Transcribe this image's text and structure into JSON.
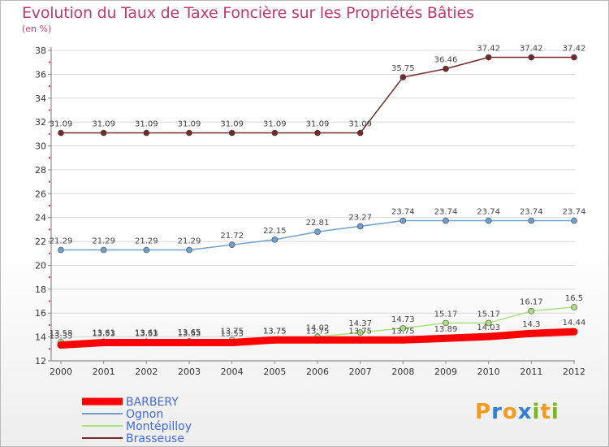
{
  "title": "Evolution du Taux de Taxe Foncière sur les Propriétés Bâties",
  "unit": "(en %)",
  "logo": {
    "letters": [
      "P",
      "r",
      "o",
      "x",
      "i",
      "t",
      "i"
    ],
    "colors": [
      "#f29b1d",
      "#2f7fd6",
      "#f29b1d",
      "#2f7fd6",
      "#7ab51d",
      "#f29b1d",
      "#7ab51d"
    ]
  },
  "chart_data": {
    "type": "line",
    "title": "Evolution du Taux de Taxe Foncière sur les Propriétés Bâties",
    "ylabel": "(en %)",
    "ylim": [
      12,
      38
    ],
    "yticks": [
      12,
      14,
      16,
      18,
      20,
      22,
      24,
      26,
      28,
      30,
      32,
      34,
      36,
      38
    ],
    "x": [
      "2000",
      "2001",
      "2002",
      "2003",
      "2004",
      "2005",
      "2006",
      "2007",
      "2008",
      "2009",
      "2010",
      "2011",
      "2012"
    ],
    "legend_position": "bottom-left",
    "series": [
      {
        "name": "Brasseuse",
        "color": "#722a2a",
        "width": "thin",
        "values": [
          31.09,
          31.09,
          31.09,
          31.09,
          31.09,
          31.09,
          31.09,
          31.09,
          35.75,
          36.46,
          37.42,
          37.42,
          37.42
        ],
        "labels": [
          "31.09",
          "31.09",
          "31.09",
          "31.09",
          "31.09",
          "31.09",
          "31.09",
          "31.09",
          "35.75",
          "36.46",
          "37.42",
          "37.42",
          "37.42"
        ]
      },
      {
        "name": "Ognon",
        "color": "#6f9fcf",
        "width": "thin",
        "values": [
          21.29,
          21.29,
          21.29,
          21.29,
          21.72,
          22.15,
          22.81,
          23.27,
          23.74,
          23.74,
          23.74,
          23.74,
          23.74
        ],
        "labels": [
          "21.29",
          "21.29",
          "21.29",
          "21.29",
          "21.72",
          "22.15",
          "22.81",
          "23.27",
          "23.74",
          "23.74",
          "23.74",
          "23.74",
          "23.74"
        ]
      },
      {
        "name": "Montépilloy",
        "color": "#a8e07e",
        "width": "thin",
        "values": [
          13.58,
          13.61,
          13.61,
          13.65,
          13.75,
          13.75,
          14.02,
          14.37,
          14.73,
          15.17,
          15.17,
          16.17,
          16.5
        ],
        "labels": [
          "13.58",
          "13.61",
          "13.61",
          "13.65",
          "13.75",
          "13.75",
          "14.02",
          "14.37",
          "14.73",
          "15.17",
          "15.17",
          "16.17",
          "16.5"
        ]
      },
      {
        "name": "BARBERY",
        "color": "#ff0000",
        "width": "thick",
        "values": [
          13.33,
          13.53,
          13.53,
          13.53,
          13.53,
          13.75,
          13.75,
          13.75,
          13.75,
          13.89,
          14.03,
          14.3,
          14.44
        ],
        "labels": [
          "13.33",
          "13.53",
          "13.53",
          "13.53",
          "13.53",
          "13.75",
          "13.75",
          "13.75",
          "13.75",
          "13.89",
          "14.03",
          "14.3",
          "14.44"
        ]
      }
    ],
    "legend": [
      "BARBERY",
      "Ognon",
      "Montépilloy",
      "Brasseuse"
    ]
  }
}
